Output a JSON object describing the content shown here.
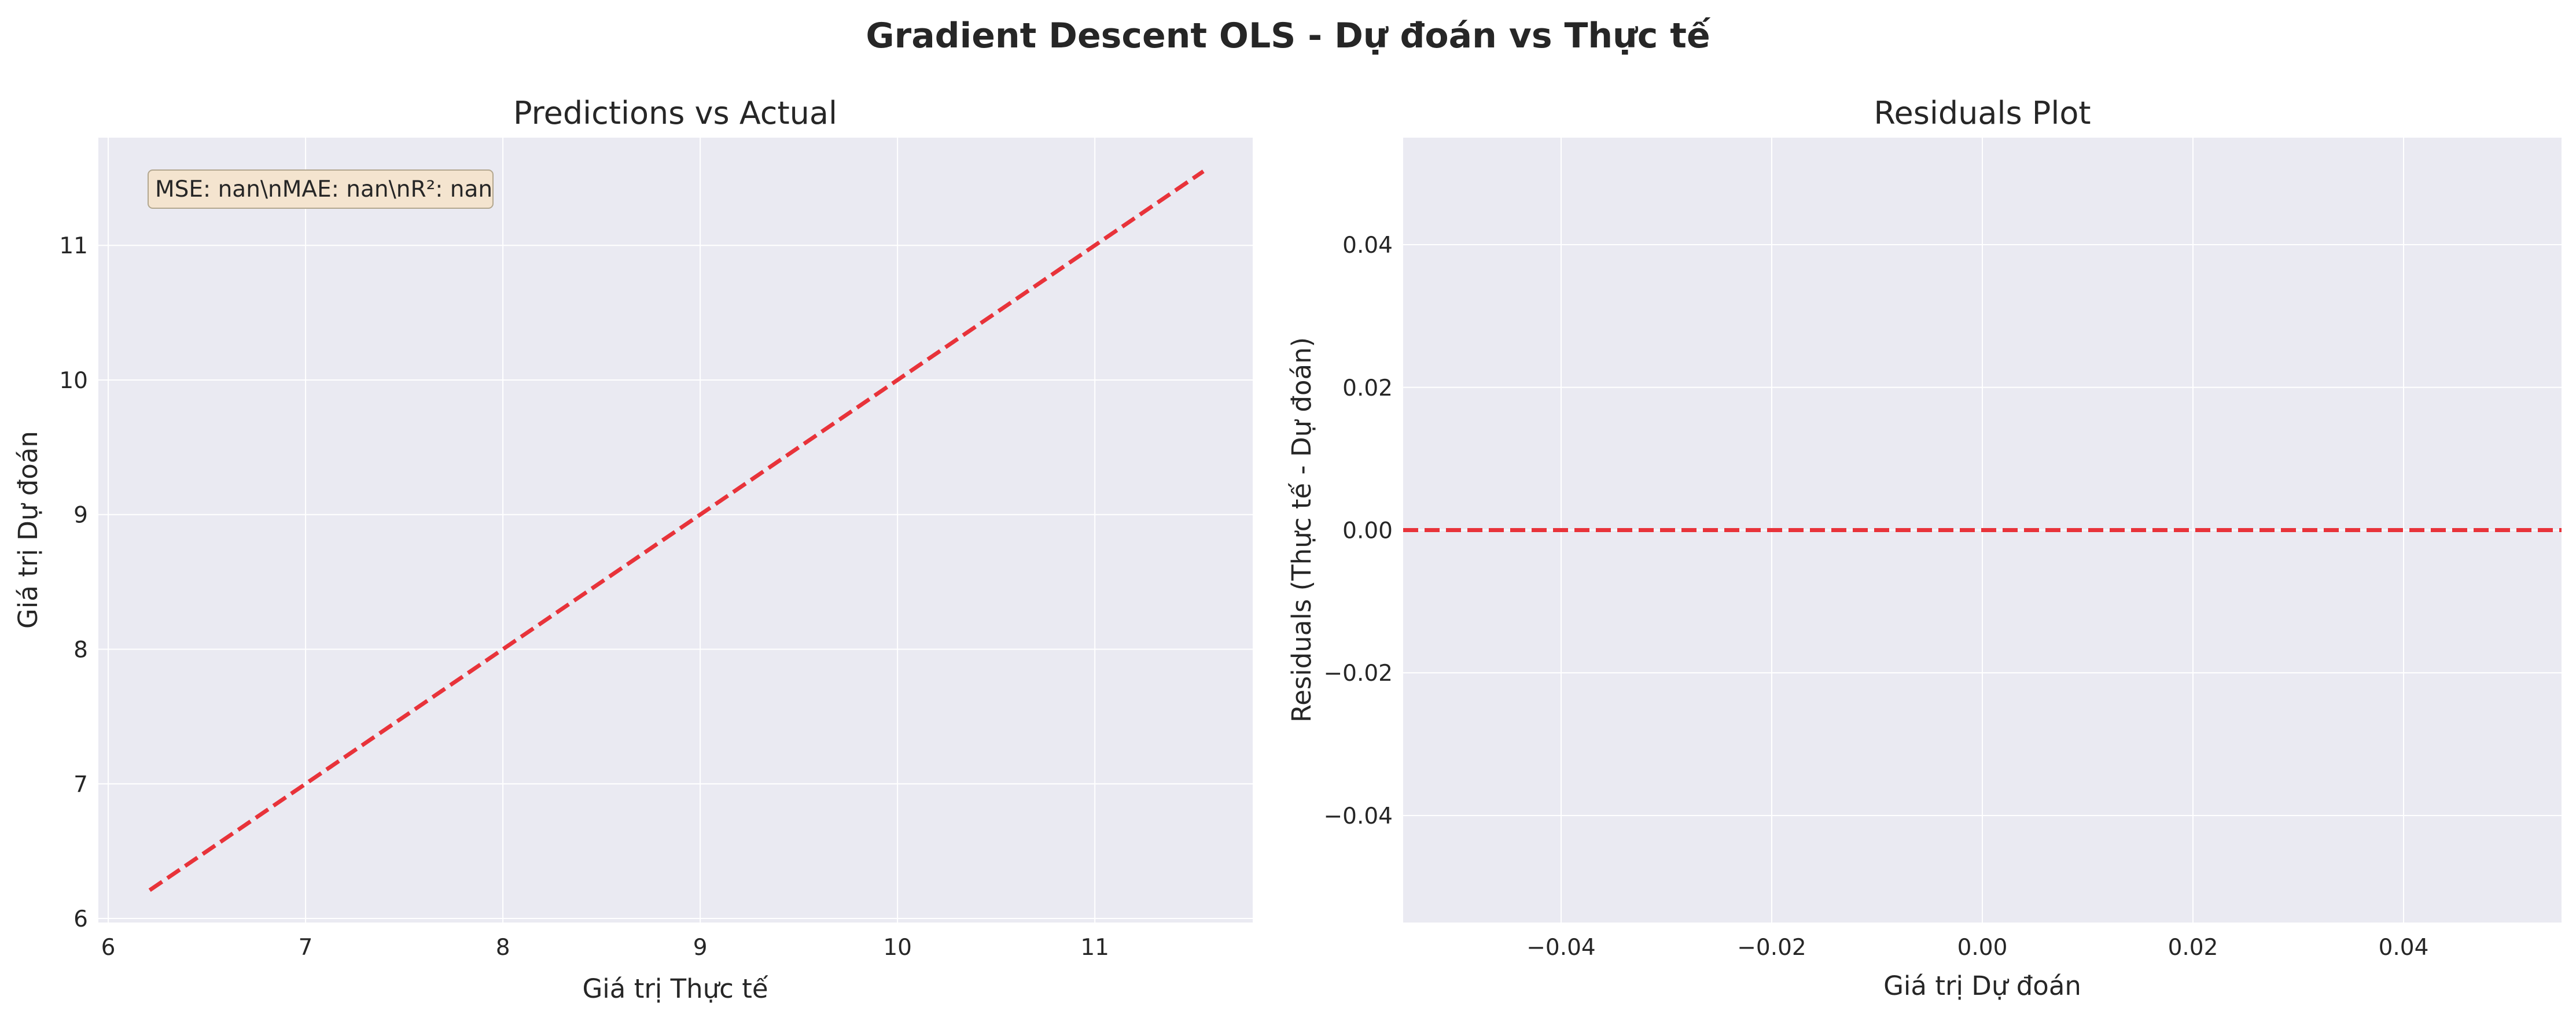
{
  "figure": {
    "title": "Gradient Descent OLS - Dự đoán vs Thực tế"
  },
  "chart_data": [
    {
      "type": "line",
      "title": "Predictions vs Actual",
      "xlabel": "Giá trị Thực tế",
      "ylabel": "Giá trị Dự đoán",
      "xlim": [
        5.95,
        11.8
      ],
      "ylim": [
        5.97,
        11.8
      ],
      "xticks": [
        6,
        7,
        8,
        9,
        10,
        11
      ],
      "yticks": [
        6,
        7,
        8,
        9,
        10,
        11
      ],
      "grid": true,
      "background": "#eaeaf2",
      "annotation": "MSE: nan\\nMAE: nan\\nR²: nan",
      "annotation_placement": "top-left",
      "series": [
        {
          "style": "dashed",
          "color": "#e8333a",
          "x": [
            6.21,
            11.55
          ],
          "y": [
            6.21,
            11.55
          ]
        }
      ]
    },
    {
      "type": "line",
      "title": "Residuals Plot",
      "xlabel": "Giá trị Dự đoán",
      "ylabel": "Residuals (Thực tế - Dự đoán)",
      "xlim": [
        -0.055,
        0.055
      ],
      "ylim": [
        -0.055,
        0.055
      ],
      "xticks": [
        -0.04,
        -0.02,
        0.0,
        0.02,
        0.04
      ],
      "xtick_labels": [
        "−0.04",
        "−0.02",
        "0.00",
        "0.02",
        "0.04"
      ],
      "yticks": [
        0.04,
        0.02,
        0.0,
        -0.02,
        -0.04
      ],
      "ytick_labels": [
        "0.04",
        "0.02",
        "0.00",
        "−0.02",
        "−0.04"
      ],
      "grid": true,
      "background": "#eaeaf2",
      "series": [
        {
          "style": "dashed",
          "color": "#e8333a",
          "x": [
            -0.055,
            0.055
          ],
          "y": [
            0.0,
            0.0
          ]
        }
      ]
    }
  ]
}
